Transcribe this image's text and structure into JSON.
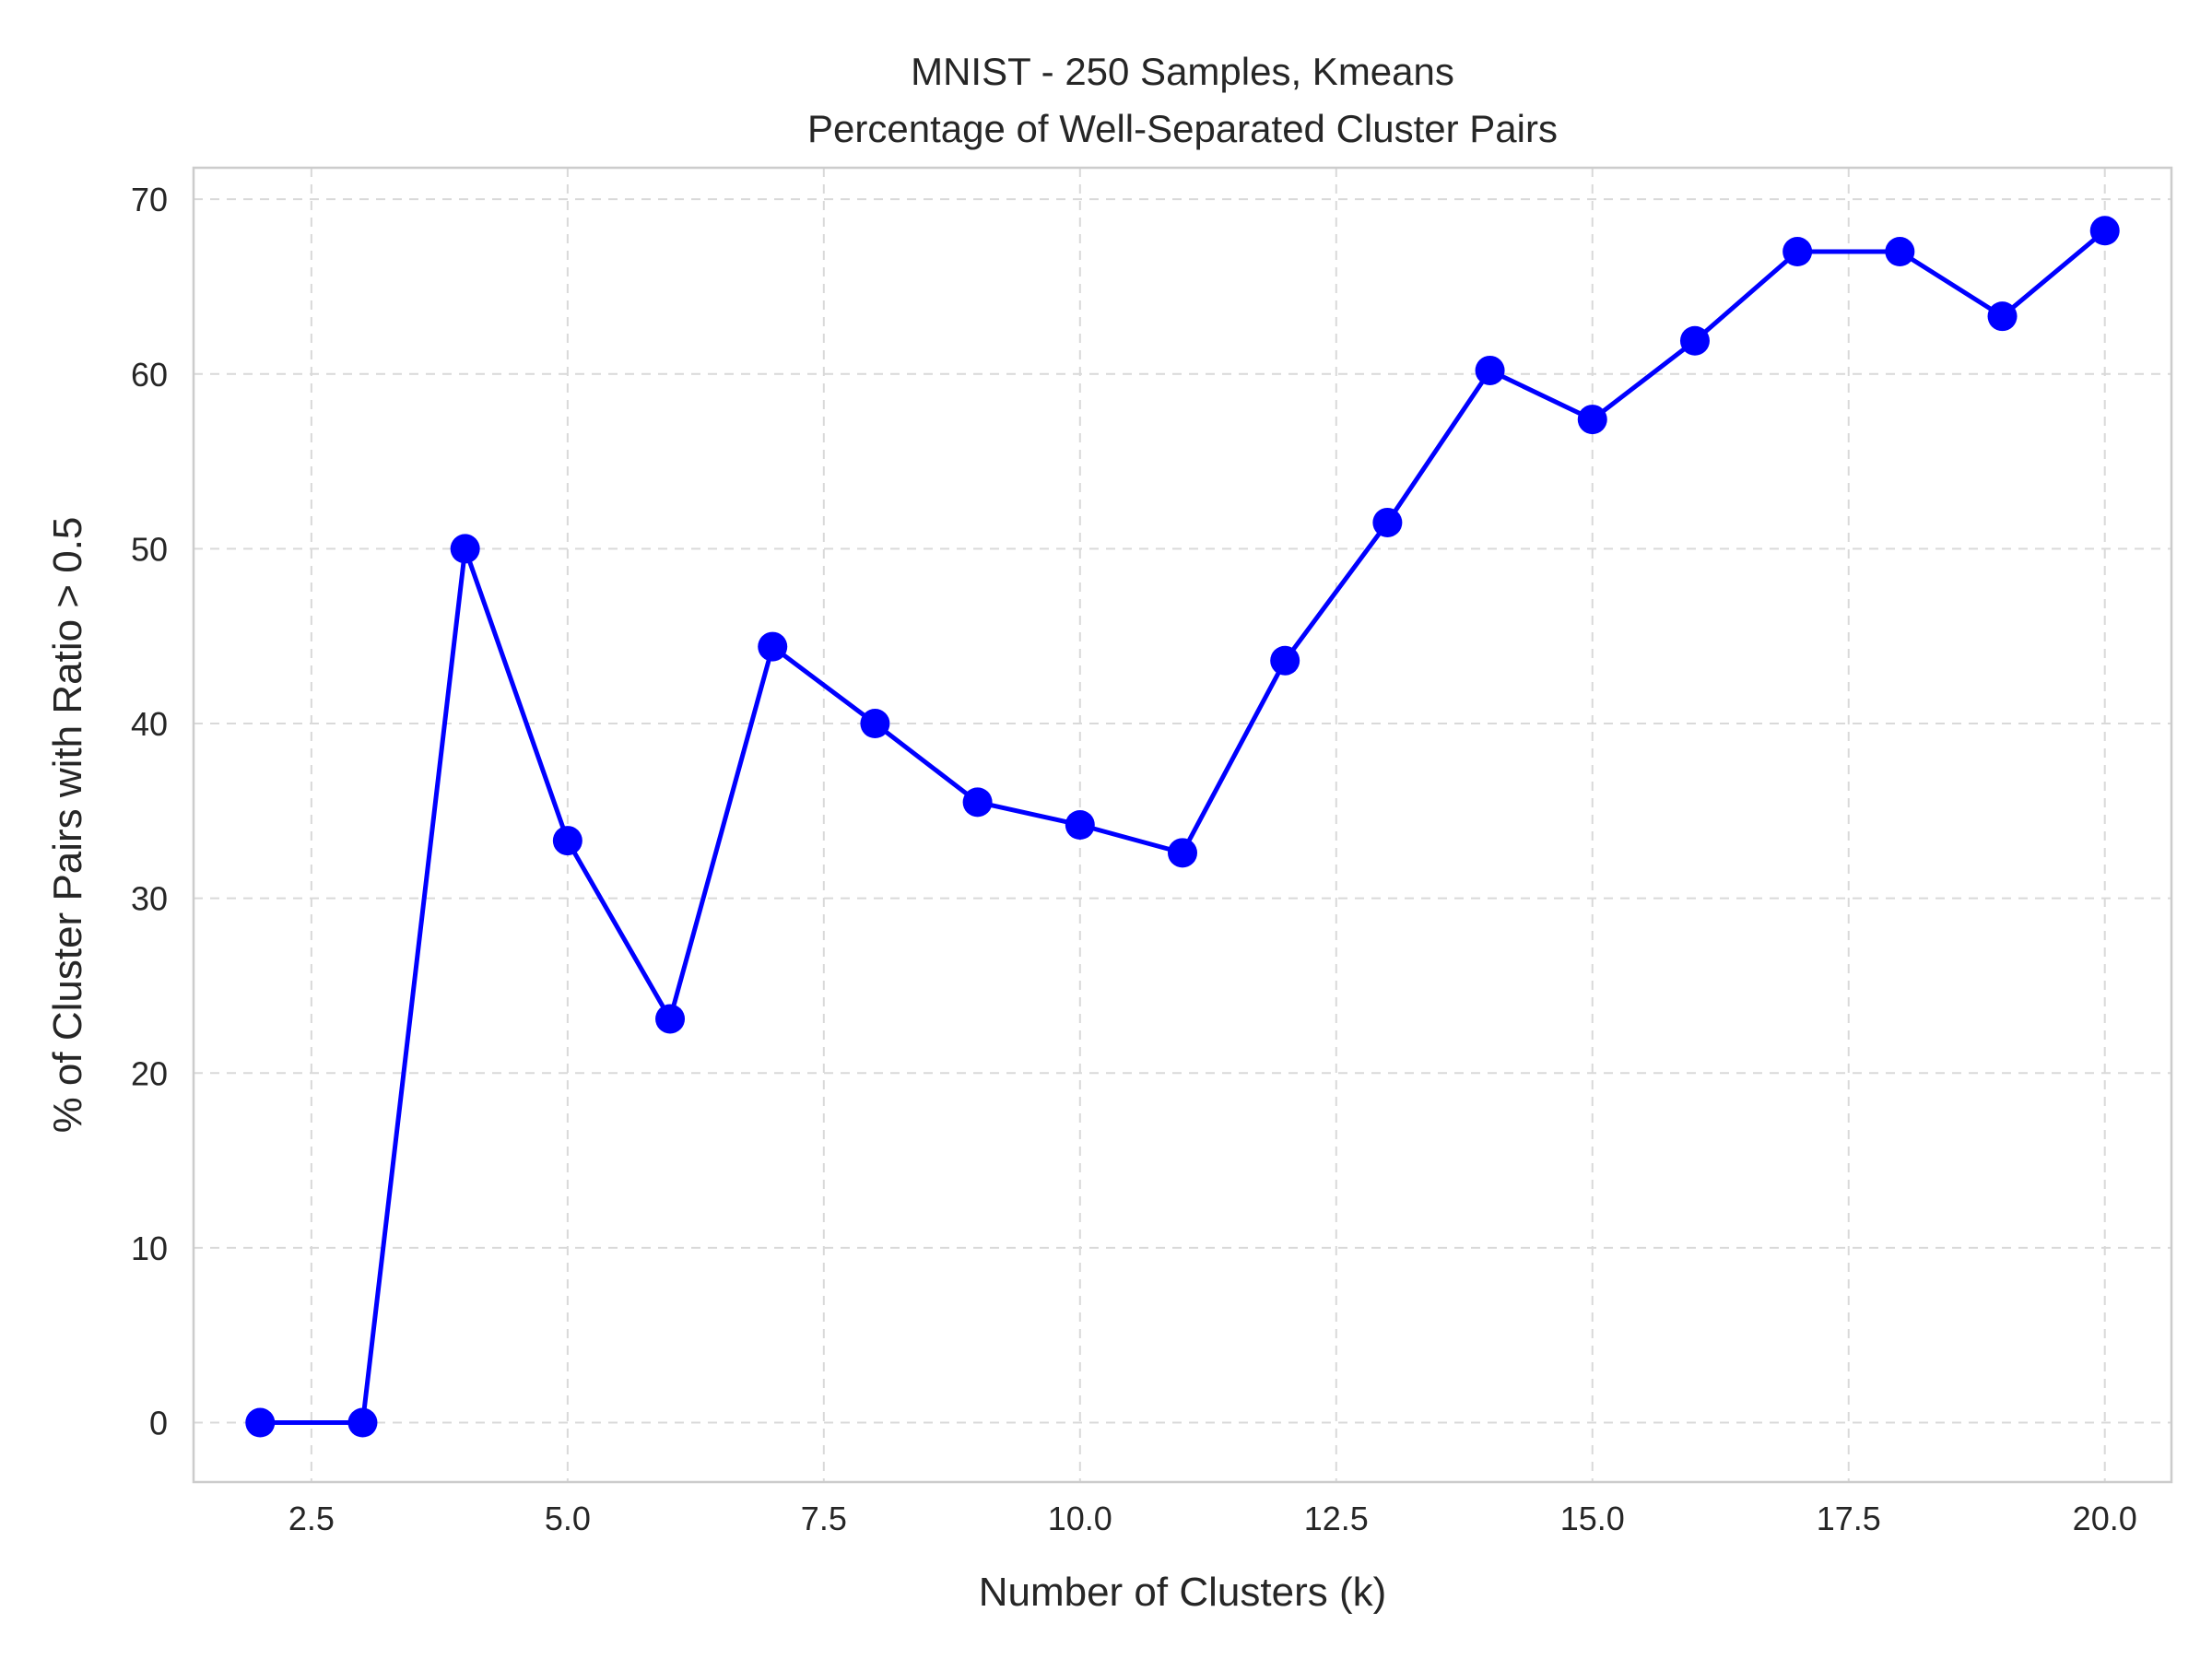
{
  "chart_data": {
    "type": "line",
    "title_line1": "MNIST - 250 Samples, Kmeans",
    "title_line2": "Percentage of Well-Separated Cluster Pairs",
    "xlabel": "Number of Clusters (k)",
    "ylabel": "% of Cluster Pairs with Ratio > 0.5",
    "xlim": [
      1.35,
      20.65
    ],
    "ylim": [
      -3.4,
      71.8
    ],
    "xticks": [
      "2.5",
      "5.0",
      "7.5",
      "10.0",
      "12.5",
      "15.0",
      "17.5",
      "20.0"
    ],
    "xtick_values": [
      2.5,
      5.0,
      7.5,
      10.0,
      12.5,
      15.0,
      17.5,
      20.0
    ],
    "yticks": [
      "0",
      "10",
      "20",
      "30",
      "40",
      "50",
      "60",
      "70"
    ],
    "ytick_values": [
      0,
      10,
      20,
      30,
      40,
      50,
      60,
      70
    ],
    "grid": true,
    "series": [
      {
        "color": "#0000ff",
        "marker": "circle",
        "x": [
          2,
          3,
          4,
          5,
          6,
          7,
          8,
          9,
          10,
          11,
          12,
          13,
          14,
          15,
          16,
          17,
          18,
          19,
          20
        ],
        "y": [
          0,
          0,
          50.0,
          33.3,
          23.1,
          44.4,
          40.0,
          35.5,
          34.2,
          32.6,
          43.6,
          51.5,
          60.2,
          57.4,
          61.9,
          67.0,
          67.0,
          63.3,
          68.2
        ]
      }
    ]
  }
}
